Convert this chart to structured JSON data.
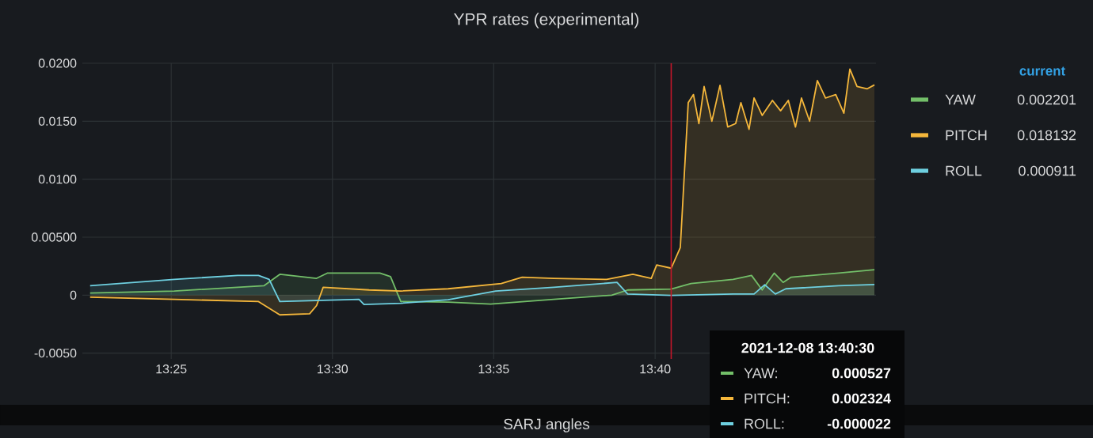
{
  "chart_data": {
    "type": "area",
    "title": "YPR rates (experimental)",
    "legend_title": "current",
    "legend": "right",
    "grid": true,
    "xlim": [
      13.3708,
      13.7808
    ],
    "ylim": [
      -0.0055,
      0.02
    ],
    "xticks": [
      {
        "value": 13.4167,
        "label": "13:25"
      },
      {
        "value": 13.5,
        "label": "13:30"
      },
      {
        "value": 13.5833,
        "label": "13:35"
      },
      {
        "value": 13.6667,
        "label": "13:40"
      }
    ],
    "yticks": [
      {
        "value": -0.005,
        "label": "-0.0050"
      },
      0,
      {
        "value": 0.005,
        "label": "0.00500"
      },
      {
        "value": 0.01,
        "label": "0.0100"
      },
      {
        "value": 0.015,
        "label": "0.0150"
      },
      {
        "value": 0.02,
        "label": "0.0200"
      }
    ],
    "series": [
      {
        "name": "YAW",
        "color": "#73bf69",
        "x": [
          13.3748,
          13.4183,
          13.4647,
          13.4728,
          13.4918,
          13.4973,
          13.5245,
          13.53,
          13.5353,
          13.5598,
          13.5817,
          13.6143,
          13.6443,
          13.6525,
          13.675,
          13.6852,
          13.707,
          13.7165,
          13.722,
          13.7282,
          13.7328,
          13.737,
          13.7615,
          13.78
        ],
        "values": [
          0.00018,
          0.00036,
          0.00082,
          0.0018,
          0.00145,
          0.0019,
          0.0019,
          0.0016,
          -0.00055,
          -0.0006,
          -0.00077,
          -0.00036,
          0.0,
          0.00045,
          0.000527,
          0.001,
          0.00136,
          0.0017,
          0.00045,
          0.0019,
          0.0011,
          0.00155,
          0.0019,
          0.002201
        ]
      },
      {
        "name": "PITCH",
        "color": "#f5b73b",
        "x": [
          13.3748,
          13.4183,
          13.4618,
          13.4728,
          13.4882,
          13.4918,
          13.4952,
          13.519,
          13.5353,
          13.5598,
          13.5872,
          13.598,
          13.6143,
          13.6417,
          13.6552,
          13.6647,
          13.6675,
          13.675,
          13.6797,
          13.6838,
          13.6865,
          13.6893,
          13.692,
          13.696,
          13.7002,
          13.7042,
          13.7083,
          13.711,
          13.7152,
          13.7178,
          13.722,
          13.7273,
          13.7315,
          13.7355,
          13.7392,
          13.7423,
          13.7465,
          13.7505,
          13.7547,
          13.76,
          13.7642,
          13.7673,
          13.771,
          13.7763,
          13.78
        ],
        "values": [
          -0.00018,
          -0.00036,
          -0.00055,
          -0.0017,
          -0.0016,
          -0.0009,
          0.00068,
          0.00045,
          0.00036,
          0.00055,
          0.001,
          0.00155,
          0.00145,
          0.00136,
          0.0018,
          0.00145,
          0.0026,
          0.002324,
          0.0041,
          0.0166,
          0.0173,
          0.0148,
          0.018,
          0.015,
          0.0181,
          0.0145,
          0.0148,
          0.0166,
          0.0143,
          0.017,
          0.0155,
          0.0168,
          0.0159,
          0.0168,
          0.0145,
          0.017,
          0.015,
          0.0185,
          0.017,
          0.0173,
          0.0157,
          0.0195,
          0.018,
          0.0178,
          0.018132
        ]
      },
      {
        "name": "ROLL",
        "color": "#6ed0e0",
        "x": [
          13.3748,
          13.4183,
          13.451,
          13.4618,
          13.4673,
          13.4728,
          13.5137,
          13.5163,
          13.5353,
          13.5598,
          13.5843,
          13.6143,
          13.647,
          13.6525,
          13.675,
          13.707,
          13.7178,
          13.7233,
          13.7288,
          13.7342,
          13.7615,
          13.78
        ],
        "values": [
          0.00082,
          0.00136,
          0.0017,
          0.0017,
          0.00136,
          -0.00055,
          -0.00036,
          -0.0008,
          -0.0007,
          -0.0004,
          0.00036,
          0.00068,
          0.0011,
          0.0001,
          -2.2e-05,
          0.0001,
          0.0001,
          0.0009,
          0.0001,
          0.00055,
          0.00082,
          0.000911
        ]
      }
    ],
    "ref_lines": [
      {
        "axis": "x",
        "value": 13.675,
        "color": "#c4162a"
      }
    ],
    "annotations": [
      "0.002201",
      "0.018132",
      "0.000911",
      "2021-12-08 13:40:30",
      "YAW:",
      "0.000527",
      "PITCH:",
      "0.002324",
      "ROLL:",
      "-0.000022",
      "SARJ angles"
    ]
  }
}
